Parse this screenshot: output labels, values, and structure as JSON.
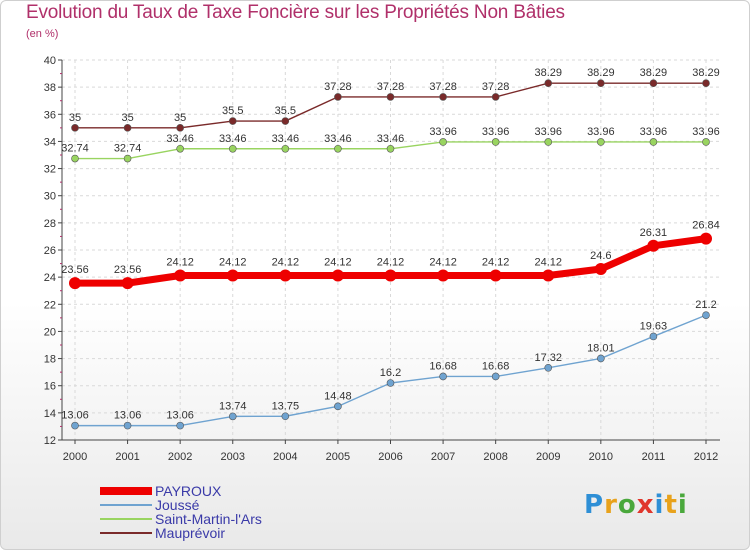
{
  "header": {
    "title": "Evolution du Taux de Taxe Foncière sur les Propriétés Non Bâties",
    "subtitle": "(en %)"
  },
  "logo": {
    "text": "Proxiti",
    "letter_colors": [
      "#2e8fd6",
      "#e8a21c",
      "#4aa83c",
      "#e0362c",
      "#2e8fd6",
      "#e8a21c",
      "#4aa83c"
    ]
  },
  "chart_data": {
    "type": "line",
    "title": "Evolution du Taux de Taxe Foncière sur les Propriétés Non Bâties",
    "subtitle": "(en %)",
    "x": [
      "2000",
      "2001",
      "2002",
      "2003",
      "2004",
      "2005",
      "2006",
      "2007",
      "2008",
      "2009",
      "2010",
      "2011",
      "2012"
    ],
    "ylim": [
      12,
      40
    ],
    "yticks": [
      12,
      14,
      16,
      18,
      20,
      22,
      24,
      26,
      28,
      30,
      32,
      34,
      36,
      38,
      40
    ],
    "grid": true,
    "legend_position": "bottom-left",
    "series": [
      {
        "name": "PAYROUX",
        "color": "#ee0000",
        "values": [
          23.56,
          23.56,
          24.12,
          24.12,
          24.12,
          24.12,
          24.12,
          24.12,
          24.12,
          24.12,
          24.6,
          26.31,
          26.84
        ],
        "labels": [
          "23.56",
          "23.56",
          "24.12",
          "24.12",
          "24.12",
          "24.12",
          "24.12",
          "24.12",
          "24.12",
          "24.12",
          "24.6",
          "26.31",
          "26.84"
        ]
      },
      {
        "name": "Joussé",
        "color": "#6fa3d0",
        "values": [
          13.06,
          13.06,
          13.06,
          13.74,
          13.75,
          14.48,
          16.2,
          16.68,
          16.68,
          17.32,
          18.01,
          19.63,
          21.2
        ],
        "labels": [
          "13.06",
          "13.06",
          "13.06",
          "13.74",
          "13.75",
          "14.48",
          "16.2",
          "16.68",
          "16.68",
          "17.32",
          "18.01",
          "19.63",
          "21.2"
        ]
      },
      {
        "name": "Saint-Martin-l'Ars",
        "color": "#99d460",
        "values": [
          32.74,
          32.74,
          33.46,
          33.46,
          33.46,
          33.46,
          33.46,
          33.96,
          33.96,
          33.96,
          33.96,
          33.96,
          33.96
        ],
        "labels": [
          "32.74",
          "32.74",
          "33.46",
          "33.46",
          "33.46",
          "33.46",
          "33.46",
          "33.96",
          "33.96",
          "33.96",
          "33.96",
          "33.96",
          "33.96"
        ]
      },
      {
        "name": "Mauprévoir",
        "color": "#7a2a2a",
        "values": [
          35,
          35,
          35,
          35.5,
          35.5,
          37.28,
          37.28,
          37.28,
          37.28,
          38.29,
          38.29,
          38.29,
          38.29
        ],
        "labels": [
          "35",
          "35",
          "35",
          "35.5",
          "35.5",
          "37.28",
          "37.28",
          "37.28",
          "37.28",
          "38.29",
          "38.29",
          "38.29",
          "38.29"
        ]
      }
    ]
  }
}
